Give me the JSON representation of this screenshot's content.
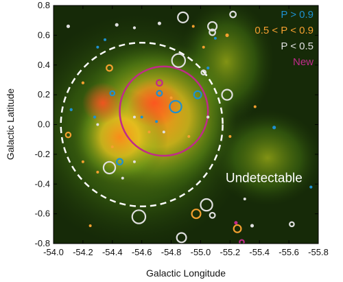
{
  "chart_data": {
    "type": "scatter",
    "title": "",
    "xlabel": "Galactic Longitude",
    "ylabel": "Galactic Latitude",
    "xlim": [
      -54.0,
      -55.8
    ],
    "ylim": [
      -0.8,
      0.8
    ],
    "x_reversed": true,
    "x_ticks": [
      "-54.0",
      "-54.2",
      "-54.4",
      "-54.6",
      "-54.8",
      "-55.0",
      "-55.2",
      "-55.4",
      "-55.6",
      "-55.8"
    ],
    "y_ticks": [
      "-0.8",
      "-0.6",
      "-0.4",
      "-0.2",
      "0.0",
      "0.2",
      "0.4",
      "0.6",
      "0.8"
    ],
    "background": "false-color infrared image (green/red/yellow nebula)",
    "legend": {
      "placement": "top-right",
      "entries": [
        {
          "label": "P > 0.9",
          "color": "#1e90d0"
        },
        {
          "label": "0.5 < P < 0.9",
          "color": "#f5a030"
        },
        {
          "label": "P < 0.5",
          "color": "#e0e0e0"
        },
        {
          "label": "New",
          "color": "#c02a8a"
        }
      ]
    },
    "annotations": [
      {
        "text": "Undetectable",
        "x": -55.1,
        "y": -0.37
      }
    ],
    "undetectable_region": {
      "center": [
        -54.6,
        0.0
      ],
      "radius": 0.55,
      "style": "dashed",
      "color": "#ffffff"
    },
    "large_region": {
      "center": [
        -54.75,
        0.09
      ],
      "radius": 0.3,
      "color": "#c02a8a"
    },
    "series": [
      {
        "name": "P > 0.9",
        "color": "#1e90d0",
        "points": [
          {
            "x": -54.4,
            "y": 0.21,
            "r": 0.015
          },
          {
            "x": -54.12,
            "y": 0.1,
            "r": 0.01
          },
          {
            "x": -54.28,
            "y": 0.05,
            "r": 0.01
          },
          {
            "x": -54.45,
            "y": -0.25,
            "r": 0.02
          },
          {
            "x": -54.72,
            "y": 0.21,
            "r": 0.018
          },
          {
            "x": -54.83,
            "y": 0.12,
            "r": 0.04
          },
          {
            "x": -54.98,
            "y": 0.2,
            "r": 0.025
          },
          {
            "x": -54.6,
            "y": 0.05,
            "r": 0.008
          },
          {
            "x": -54.7,
            "y": 0.02,
            "r": 0.007
          },
          {
            "x": -55.05,
            "y": 0.38,
            "r": 0.01
          },
          {
            "x": -55.5,
            "y": -0.02,
            "r": 0.012
          },
          {
            "x": -55.75,
            "y": -0.42,
            "r": 0.01
          },
          {
            "x": -55.1,
            "y": 0.58,
            "r": 0.008
          },
          {
            "x": -54.3,
            "y": 0.52,
            "r": 0.008
          },
          {
            "x": -54.35,
            "y": 0.57,
            "r": 0.007
          }
        ]
      },
      {
        "name": "0.5 < P < 0.9",
        "color": "#f5a030",
        "points": [
          {
            "x": -54.2,
            "y": 0.28,
            "r": 0.01
          },
          {
            "x": -54.1,
            "y": -0.07,
            "r": 0.017
          },
          {
            "x": -54.38,
            "y": 0.38,
            "r": 0.02
          },
          {
            "x": -54.2,
            "y": -0.25,
            "r": 0.008
          },
          {
            "x": -54.3,
            "y": -0.32,
            "r": 0.008
          },
          {
            "x": -54.4,
            "y": -0.15,
            "r": 0.007
          },
          {
            "x": -54.8,
            "y": 0.18,
            "r": 0.008
          },
          {
            "x": -54.65,
            "y": -0.05,
            "r": 0.008
          },
          {
            "x": -54.92,
            "y": -0.08,
            "r": 0.007
          },
          {
            "x": -55.18,
            "y": 0.6,
            "r": 0.012
          },
          {
            "x": -54.95,
            "y": 0.66,
            "r": 0.008
          },
          {
            "x": -55.02,
            "y": 0.52,
            "r": 0.008
          },
          {
            "x": -54.97,
            "y": -0.6,
            "r": 0.03
          },
          {
            "x": -55.25,
            "y": -0.7,
            "r": 0.025
          },
          {
            "x": -54.25,
            "y": -0.68,
            "r": 0.008
          },
          {
            "x": -55.37,
            "y": 0.12,
            "r": 0.008
          },
          {
            "x": -55.2,
            "y": -0.08,
            "r": 0.007
          }
        ]
      },
      {
        "name": "P < 0.5",
        "color": "#e0e0e0",
        "points": [
          {
            "x": -54.1,
            "y": 0.66,
            "r": 0.012
          },
          {
            "x": -54.43,
            "y": 0.67,
            "r": 0.012
          },
          {
            "x": -54.55,
            "y": 0.65,
            "r": 0.01
          },
          {
            "x": -54.72,
            "y": 0.68,
            "r": 0.012
          },
          {
            "x": -54.88,
            "y": 0.72,
            "r": 0.035
          },
          {
            "x": -55.08,
            "y": 0.66,
            "r": 0.03
          },
          {
            "x": -55.08,
            "y": 0.62,
            "r": 0.02
          },
          {
            "x": -55.22,
            "y": 0.74,
            "r": 0.02
          },
          {
            "x": -54.85,
            "y": 0.43,
            "r": 0.045
          },
          {
            "x": -55.02,
            "y": 0.35,
            "r": 0.015
          },
          {
            "x": -55.18,
            "y": 0.2,
            "r": 0.035
          },
          {
            "x": -55.05,
            "y": 0.05,
            "r": 0.01
          },
          {
            "x": -55.3,
            "y": -0.5,
            "r": 0.008
          },
          {
            "x": -54.38,
            "y": -0.29,
            "r": 0.04
          },
          {
            "x": -54.47,
            "y": -0.36,
            "r": 0.008
          },
          {
            "x": -54.55,
            "y": -0.25,
            "r": 0.008
          },
          {
            "x": -54.58,
            "y": -0.62,
            "r": 0.045
          },
          {
            "x": -54.87,
            "y": -0.76,
            "r": 0.032
          },
          {
            "x": -55.04,
            "y": -0.54,
            "r": 0.04
          },
          {
            "x": -55.08,
            "y": -0.61,
            "r": 0.018
          },
          {
            "x": -55.35,
            "y": -0.68,
            "r": 0.012
          },
          {
            "x": -55.62,
            "y": -0.67,
            "r": 0.015
          },
          {
            "x": -54.75,
            "y": -0.05,
            "r": 0.008
          },
          {
            "x": -54.55,
            "y": 0.05,
            "r": 0.008
          },
          {
            "x": -54.3,
            "y": 0.0,
            "r": 0.008
          }
        ]
      },
      {
        "name": "New",
        "color": "#c02a8a",
        "points": [
          {
            "x": -54.72,
            "y": 0.28,
            "r": 0.02
          },
          {
            "x": -55.24,
            "y": -0.66,
            "r": 0.012
          },
          {
            "x": -55.28,
            "y": -0.79,
            "r": 0.015
          }
        ]
      }
    ]
  }
}
